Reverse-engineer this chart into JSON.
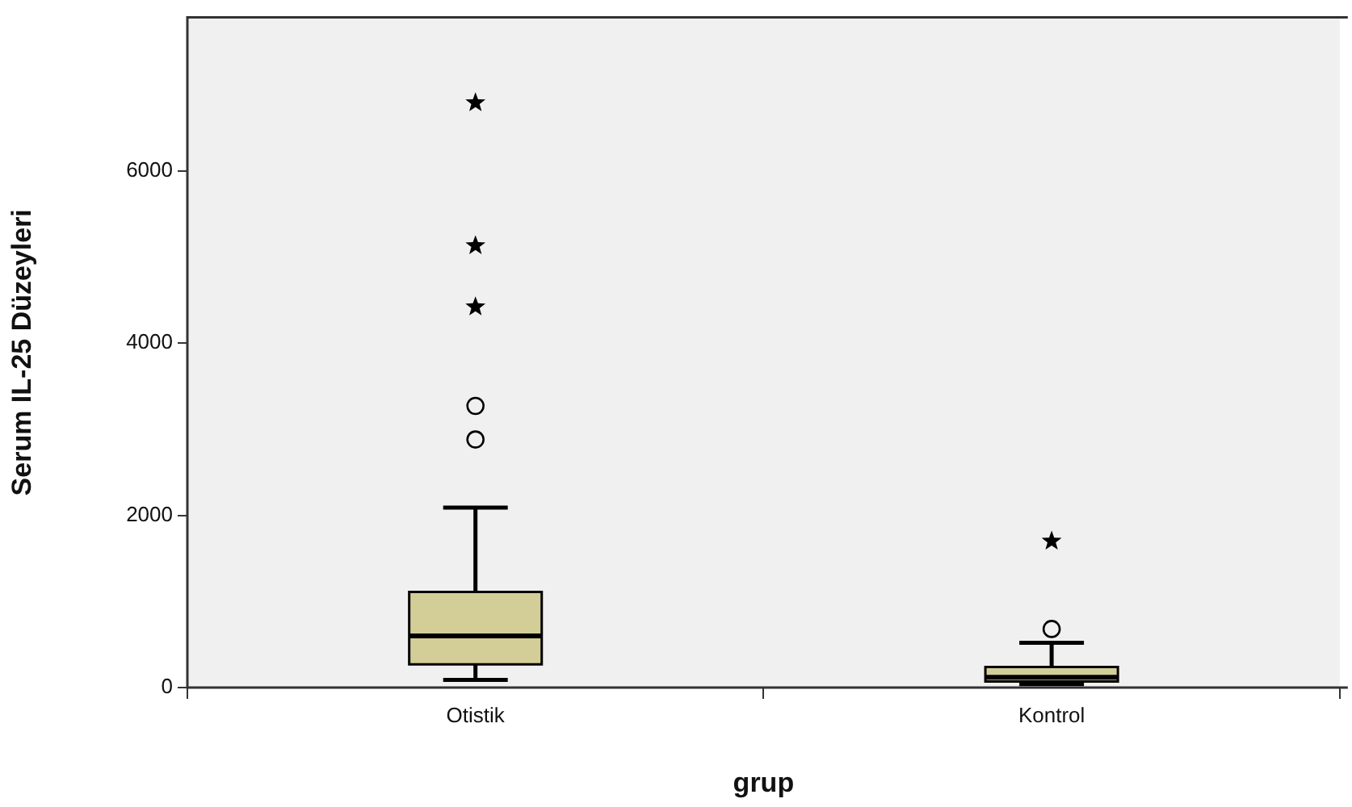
{
  "chart_data": {
    "type": "box",
    "xlabel": "grup",
    "ylabel": "Serum IL-25 Düzeyleri",
    "categories": [
      "Otistik",
      "Kontrol"
    ],
    "ylim": [
      0,
      7780
    ],
    "yticks": [
      0,
      2000,
      4000,
      6000
    ],
    "series": [
      {
        "color": "#d3ce98",
        "boxes": [
          {
            "low": 90,
            "q1": 270,
            "median": 600,
            "q3": 1110,
            "high": 2090,
            "outliers": [
              3270,
              2880
            ]
          },
          {
            "low": 40,
            "q1": 70,
            "median": 120,
            "q3": 240,
            "high": 520,
            "outliers": [
              680
            ]
          }
        ]
      },
      {
        "type": "scatter",
        "marker": "star",
        "color": "#000000",
        "x": [
          "Otistik",
          "Otistik",
          "Otistik",
          "Kontrol"
        ],
        "values": [
          6790,
          5130,
          4420,
          1700
        ]
      }
    ]
  }
}
